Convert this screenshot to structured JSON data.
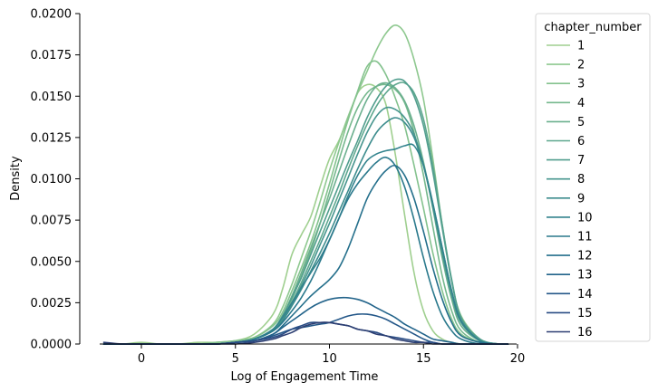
{
  "chart_data": {
    "type": "line",
    "subtype": "kde",
    "title": "",
    "xlabel": "Log of Engagement Time",
    "ylabel": "Density",
    "xlim": [
      -2.5,
      20
    ],
    "ylim": [
      0,
      0.02
    ],
    "x_ticks": [
      0,
      5,
      10,
      15,
      20
    ],
    "x_tick_labels": [
      "0",
      "5",
      "10",
      "15",
      "20"
    ],
    "y_ticks": [
      0,
      0.0025,
      0.005,
      0.0075,
      0.01,
      0.0125,
      0.015,
      0.0175,
      0.02
    ],
    "y_tick_labels": [
      "0.0000",
      "0.0025",
      "0.0050",
      "0.0075",
      "0.0100",
      "0.0125",
      "0.0150",
      "0.0175",
      "0.0200"
    ],
    "grid": false,
    "legend": {
      "title": "chapter_number",
      "position": "outside-right"
    },
    "x": [
      -2,
      -1,
      0,
      1,
      2,
      3,
      4,
      5,
      6,
      7,
      7.5,
      8,
      8.5,
      9,
      9.5,
      10,
      10.5,
      11,
      11.5,
      12,
      12.5,
      13,
      13.5,
      14,
      14.5,
      15,
      15.5,
      16,
      16.5,
      17,
      18,
      19,
      19.5
    ],
    "series": [
      {
        "name": "1",
        "color": "#9fcf8f",
        "values": [
          0,
          0,
          0.0001,
          0,
          0,
          0.0001,
          0.0001,
          0.0002,
          0.0006,
          0.0018,
          0.0033,
          0.0054,
          0.0066,
          0.0077,
          0.0095,
          0.0112,
          0.0123,
          0.0137,
          0.0152,
          0.0157,
          0.0155,
          0.0145,
          0.0115,
          0.0078,
          0.0043,
          0.002,
          0.0008,
          0.0003,
          0.0001,
          0,
          0,
          0,
          0
        ]
      },
      {
        "name": "2",
        "color": "#8ec88f",
        "values": [
          0,
          0,
          0,
          0,
          0,
          0,
          0.0001,
          0.0002,
          0.0004,
          0.0012,
          0.0022,
          0.0036,
          0.0052,
          0.0068,
          0.0086,
          0.0105,
          0.0122,
          0.0138,
          0.0152,
          0.0165,
          0.0178,
          0.0188,
          0.0193,
          0.0188,
          0.0172,
          0.0148,
          0.0112,
          0.0072,
          0.0038,
          0.0017,
          0.0003,
          0,
          0
        ]
      },
      {
        "name": "3",
        "color": "#84c28e",
        "values": [
          0,
          0,
          0,
          0,
          0,
          0,
          0.0001,
          0.0002,
          0.0004,
          0.0011,
          0.0019,
          0.0032,
          0.0046,
          0.0061,
          0.0078,
          0.0097,
          0.0117,
          0.0136,
          0.0153,
          0.0168,
          0.0171,
          0.0163,
          0.0149,
          0.0132,
          0.0108,
          0.0082,
          0.0055,
          0.0032,
          0.0015,
          0.0006,
          0.0001,
          0,
          0
        ]
      },
      {
        "name": "4",
        "color": "#75b88d",
        "values": [
          0,
          0,
          0,
          0,
          0,
          0,
          0,
          0.0001,
          0.0003,
          0.0009,
          0.0016,
          0.0027,
          0.0041,
          0.0056,
          0.0073,
          0.0092,
          0.0111,
          0.0129,
          0.0143,
          0.0152,
          0.0156,
          0.0157,
          0.0154,
          0.0146,
          0.0128,
          0.0102,
          0.0071,
          0.0041,
          0.002,
          0.0008,
          0.0001,
          0,
          0
        ]
      },
      {
        "name": "5",
        "color": "#6aaf8e",
        "values": [
          0,
          0,
          0,
          0,
          0,
          0,
          0,
          0.0001,
          0.0003,
          0.0009,
          0.0017,
          0.0029,
          0.0043,
          0.0058,
          0.0073,
          0.0088,
          0.0104,
          0.012,
          0.0135,
          0.0148,
          0.0156,
          0.0158,
          0.0155,
          0.0147,
          0.0132,
          0.011,
          0.0082,
          0.0052,
          0.0027,
          0.0011,
          0.0002,
          0,
          0
        ]
      },
      {
        "name": "6",
        "color": "#5da78e",
        "values": [
          0,
          0,
          0,
          0,
          0,
          0,
          0,
          0.0001,
          0.0003,
          0.0008,
          0.0015,
          0.0025,
          0.0037,
          0.005,
          0.0063,
          0.0077,
          0.0091,
          0.0106,
          0.012,
          0.0133,
          0.0144,
          0.0152,
          0.0157,
          0.0158,
          0.0152,
          0.0136,
          0.0108,
          0.0072,
          0.0039,
          0.0016,
          0.0003,
          0,
          0
        ]
      },
      {
        "name": "7",
        "color": "#519e8e",
        "values": [
          0,
          0,
          0,
          0,
          0,
          0,
          0,
          0.0001,
          0.0003,
          0.0009,
          0.0017,
          0.0028,
          0.004,
          0.0054,
          0.0068,
          0.0082,
          0.0096,
          0.011,
          0.0123,
          0.0137,
          0.0148,
          0.0156,
          0.016,
          0.0159,
          0.015,
          0.0132,
          0.0104,
          0.007,
          0.0038,
          0.0016,
          0.0003,
          0,
          0
        ]
      },
      {
        "name": "8",
        "color": "#46958e",
        "values": [
          0,
          0,
          0,
          0,
          0,
          0,
          0,
          0.0001,
          0.0003,
          0.0008,
          0.0014,
          0.0024,
          0.0035,
          0.0047,
          0.006,
          0.0073,
          0.0087,
          0.0101,
          0.0115,
          0.0128,
          0.0138,
          0.0143,
          0.0142,
          0.0137,
          0.0127,
          0.0108,
          0.0083,
          0.0055,
          0.003,
          0.0013,
          0.0002,
          0,
          0
        ]
      },
      {
        "name": "9",
        "color": "#3c8c8d",
        "values": [
          0,
          0,
          0,
          0,
          0,
          0,
          0,
          0.0001,
          0.0003,
          0.0008,
          0.0014,
          0.0023,
          0.0033,
          0.0044,
          0.0055,
          0.0067,
          0.008,
          0.0093,
          0.0106,
          0.0118,
          0.0128,
          0.0134,
          0.0137,
          0.0134,
          0.0125,
          0.0108,
          0.0085,
          0.0058,
          0.0032,
          0.0014,
          0.0002,
          0,
          0
        ]
      },
      {
        "name": "10",
        "color": "#32838d",
        "values": [
          0,
          0,
          0,
          0,
          0,
          0,
          0,
          0.0001,
          0.0003,
          0.0009,
          0.0016,
          0.0025,
          0.0034,
          0.0043,
          0.0052,
          0.0063,
          0.0076,
          0.009,
          0.0102,
          0.0111,
          0.0115,
          0.0117,
          0.0118,
          0.012,
          0.012,
          0.0108,
          0.0085,
          0.0058,
          0.0032,
          0.0014,
          0.0002,
          0,
          0
        ]
      },
      {
        "name": "11",
        "color": "#2a798c",
        "values": [
          0,
          0,
          0,
          0,
          0,
          0,
          0,
          0.0001,
          0.0003,
          0.0008,
          0.0013,
          0.002,
          0.0028,
          0.0038,
          0.005,
          0.0063,
          0.0076,
          0.0088,
          0.0097,
          0.0104,
          0.011,
          0.0113,
          0.0108,
          0.0095,
          0.0075,
          0.0052,
          0.0032,
          0.0017,
          0.0008,
          0.0003,
          0,
          0,
          0
        ]
      },
      {
        "name": "12",
        "color": "#246f8b",
        "values": [
          0,
          0,
          0,
          0,
          0,
          0,
          0,
          0.0001,
          0.0002,
          0.0006,
          0.0011,
          0.0017,
          0.0023,
          0.0029,
          0.0034,
          0.0039,
          0.0046,
          0.0058,
          0.0073,
          0.0088,
          0.0098,
          0.0105,
          0.0108,
          0.0102,
          0.0088,
          0.0068,
          0.0046,
          0.0027,
          0.0013,
          0.0005,
          0.0001,
          0,
          0
        ]
      },
      {
        "name": "13",
        "color": "#22638a",
        "values": [
          0,
          0,
          0,
          0,
          0,
          0,
          0,
          0.0001,
          0.0002,
          0.0006,
          0.001,
          0.0014,
          0.0018,
          0.0022,
          0.0025,
          0.0027,
          0.0028,
          0.0028,
          0.0027,
          0.0025,
          0.0022,
          0.0019,
          0.0016,
          0.0012,
          0.0009,
          0.0006,
          0.0003,
          0.0002,
          0.0001,
          0,
          0,
          0,
          0
        ]
      },
      {
        "name": "14",
        "color": "#255889",
        "values": [
          0,
          0,
          0,
          0,
          0,
          0,
          0,
          0.0001,
          0.0002,
          0.0005,
          0.0007,
          0.0009,
          0.001,
          0.0011,
          0.0012,
          0.0013,
          0.0015,
          0.0017,
          0.0018,
          0.0018,
          0.0017,
          0.0015,
          0.0012,
          0.0009,
          0.0006,
          0.0003,
          0.0001,
          0,
          0,
          0,
          0,
          0,
          0
        ]
      },
      {
        "name": "15",
        "color": "#294c84",
        "values": [
          0,
          0,
          0,
          0,
          0,
          0,
          0,
          0.0001,
          0.0002,
          0.0004,
          0.0006,
          0.0009,
          0.0011,
          0.0013,
          0.0013,
          0.0013,
          0.0012,
          0.0011,
          0.0009,
          0.0008,
          0.0007,
          0.0005,
          0.0004,
          0.0003,
          0.0002,
          0.0001,
          0.0001,
          0,
          0,
          0,
          0,
          0,
          0
        ]
      },
      {
        "name": "16",
        "color": "#2c3e72",
        "values": [
          0.0001,
          0,
          0,
          0,
          0,
          0,
          0,
          0,
          0.0001,
          0.0003,
          0.0005,
          0.0007,
          0.001,
          0.0012,
          0.0013,
          0.0013,
          0.0012,
          0.0011,
          0.0009,
          0.0008,
          0.0006,
          0.0005,
          0.0003,
          0.0002,
          0.0001,
          0.0001,
          0,
          0,
          0,
          0,
          0,
          0,
          0
        ]
      }
    ]
  }
}
